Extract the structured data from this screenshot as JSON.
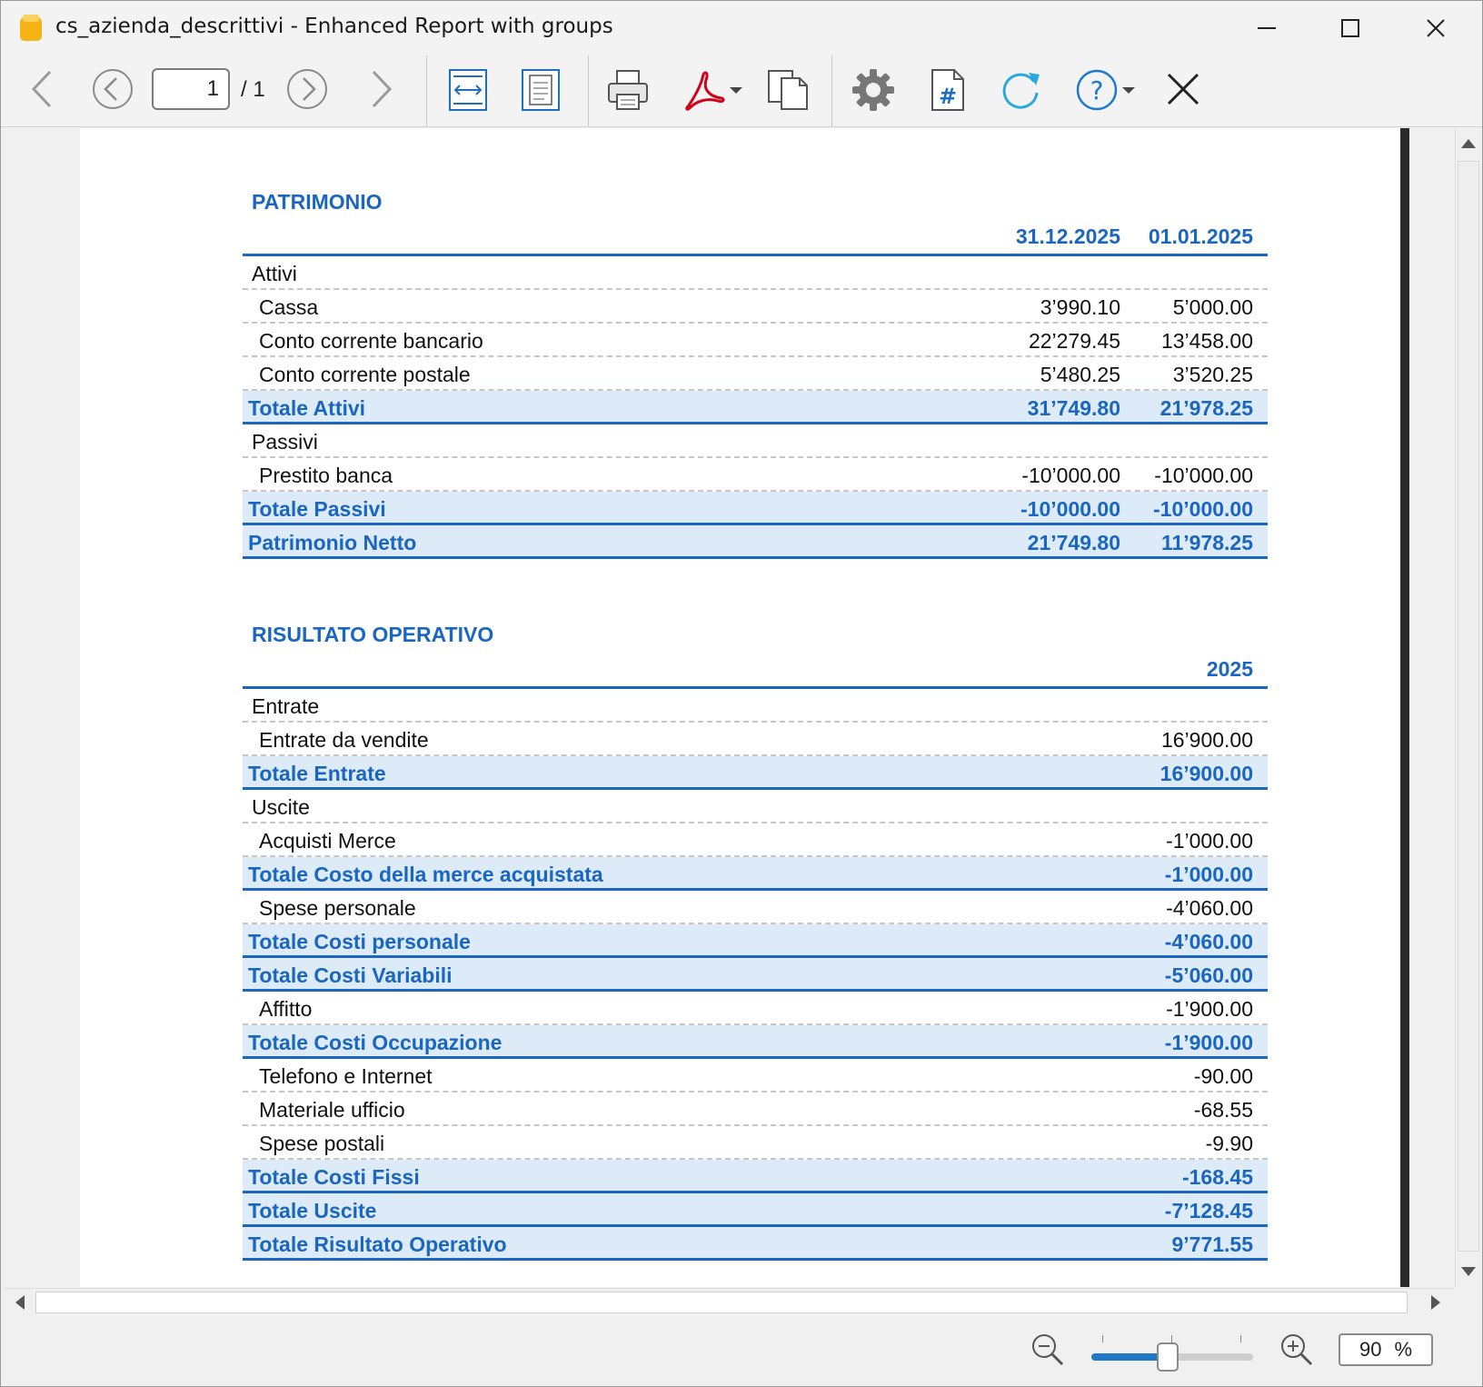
{
  "window": {
    "title": "cs_azienda_descrittivi - Enhanced Report with groups"
  },
  "toolbar": {
    "page_current": "1",
    "page_total": "/ 1"
  },
  "statusbar": {
    "zoom_value": "90",
    "zoom_unit": "%",
    "zoom_level": 0.47
  },
  "report": {
    "patrimonio": {
      "title": "PATRIMONIO",
      "col1": "31.12.2025",
      "col2": "01.01.2025",
      "rows": [
        {
          "type": "grp",
          "label": "Attivi",
          "v1": "",
          "v2": ""
        },
        {
          "type": "item",
          "label": "Cassa",
          "v1": "3’990.10",
          "v2": "5’000.00"
        },
        {
          "type": "item",
          "label": "Conto corrente bancario",
          "v1": "22’279.45",
          "v2": "13’458.00"
        },
        {
          "type": "item",
          "label": "Conto corrente postale",
          "v1": "5’480.25",
          "v2": "3’520.25"
        },
        {
          "type": "total",
          "label": "Totale Attivi",
          "v1": "31’749.80",
          "v2": "21’978.25"
        },
        {
          "type": "grp",
          "label": "Passivi",
          "v1": "",
          "v2": ""
        },
        {
          "type": "item",
          "label": "Prestito banca",
          "v1": "-10’000.00",
          "v2": "-10’000.00"
        },
        {
          "type": "total",
          "label": "Totale Passivi",
          "v1": "-10’000.00",
          "v2": "-10’000.00"
        },
        {
          "type": "total",
          "label": "Patrimonio Netto",
          "v1": "21’749.80",
          "v2": "11’978.25"
        }
      ]
    },
    "risultato": {
      "title": "RISULTATO OPERATIVO",
      "col1": "2025",
      "rows": [
        {
          "type": "grp",
          "label": "Entrate",
          "v1": ""
        },
        {
          "type": "item",
          "label": "Entrate da vendite",
          "v1": "16’900.00"
        },
        {
          "type": "total",
          "label": "Totale Entrate",
          "v1": "16’900.00"
        },
        {
          "type": "grp",
          "label": "Uscite",
          "v1": ""
        },
        {
          "type": "item",
          "label": "Acquisti Merce",
          "v1": "-1’000.00"
        },
        {
          "type": "total",
          "label": "Totale Costo della merce acquistata",
          "v1": "-1’000.00"
        },
        {
          "type": "item",
          "label": "Spese personale",
          "v1": "-4’060.00"
        },
        {
          "type": "total",
          "label": "Totale Costi personale",
          "v1": "-4’060.00"
        },
        {
          "type": "total",
          "label": "Totale Costi Variabili",
          "v1": "-5’060.00"
        },
        {
          "type": "item",
          "label": "Affitto",
          "v1": "-1’900.00"
        },
        {
          "type": "total",
          "label": "Totale Costi Occupazione",
          "v1": "-1’900.00"
        },
        {
          "type": "item",
          "label": "Telefono e Internet",
          "v1": "-90.00"
        },
        {
          "type": "item",
          "label": "Materiale ufficio",
          "v1": "-68.55"
        },
        {
          "type": "item",
          "label": "Spese postali",
          "v1": "-9.90"
        },
        {
          "type": "total",
          "label": "Totale Costi Fissi",
          "v1": "-168.45"
        },
        {
          "type": "total",
          "label": "Totale Uscite",
          "v1": "-7’128.45"
        },
        {
          "type": "total",
          "label": "Totale Risultato Operativo",
          "v1": "9’771.55"
        }
      ]
    }
  },
  "colors": {
    "accent": "#1a66c0",
    "total_bg": "#dcebf7",
    "pdf_red": "#d0021b",
    "refresh": "#29a8e0"
  }
}
